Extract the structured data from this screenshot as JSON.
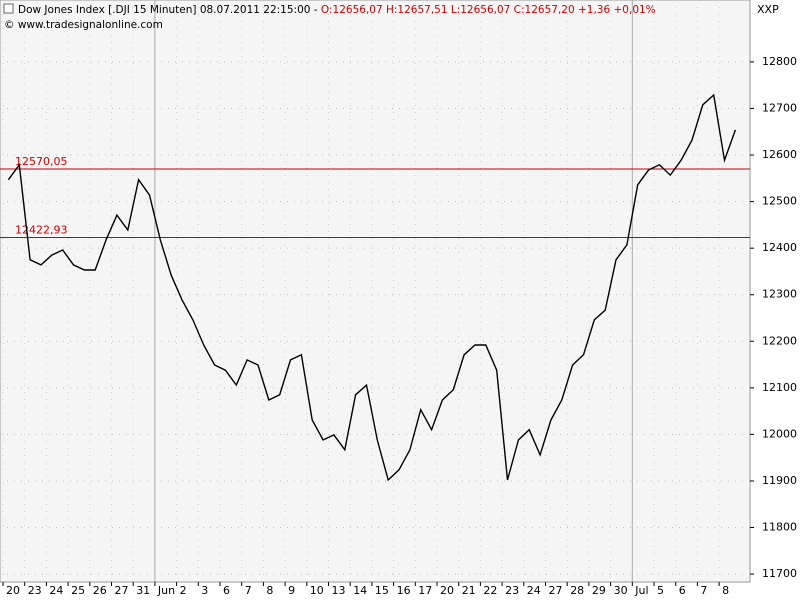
{
  "chart_data": {
    "type": "line",
    "title": "Dow Jones Index [.DJI  15 Minuten] 08.07.2011 22:15:00 -",
    "subtitle": "O:12656,07 H:12657,51 L:12656,07 C:12657,20 +1,36 +0,01%",
    "source": "© www.tradesignalonline.com",
    "axis_name": "XXP",
    "categories": [
      "20",
      null,
      "23",
      null,
      "24",
      null,
      "25",
      null,
      "26",
      null,
      "27",
      null,
      "31",
      null,
      "Jun",
      null,
      "2",
      null,
      "3",
      null,
      "6",
      null,
      "7",
      null,
      "8",
      null,
      "9",
      null,
      "10",
      null,
      "13",
      null,
      "14",
      null,
      "15",
      null,
      "16",
      null,
      "17",
      null,
      "20",
      null,
      "21",
      null,
      "22",
      null,
      "23",
      null,
      "24",
      null,
      "27",
      null,
      "28",
      null,
      "29",
      null,
      "30",
      null,
      "Jul",
      null,
      "5",
      null,
      "6",
      null,
      "7",
      null,
      "8",
      null
    ],
    "series": [
      {
        "color": "#000000",
        "values": [
          12547,
          12579,
          12375,
          12364,
          12385,
          12396,
          12364,
          12353,
          12353,
          12418,
          12471,
          12439,
          12547,
          12514,
          12418,
          12342,
          12289,
          12246,
          12192,
          12149,
          12138,
          12106,
          12160,
          12149,
          12074,
          12085,
          12160,
          12171,
          12031,
          11988,
          11999,
          11967,
          12085,
          12106,
          11988,
          11902,
          11924,
          11967,
          12053,
          12010,
          12074,
          12096,
          12171,
          12192,
          12192,
          12138,
          11902,
          11988,
          12010,
          11956,
          12031,
          12074,
          12149,
          12171,
          12246,
          12267,
          12375,
          12407,
          12536,
          12568,
          12579,
          12557,
          12589,
          12632,
          12708,
          12729,
          12589,
          12654
        ]
      }
    ],
    "levels": [
      {
        "value": 12570.05,
        "label": "12570,05",
        "color": "#cc0000"
      },
      {
        "value": 12422.93,
        "label": "12422,93",
        "color": "#cc0000"
      }
    ],
    "ylim": [
      11683,
      12933
    ],
    "yticks": [
      11700,
      11800,
      11900,
      12000,
      12100,
      12200,
      12300,
      12400,
      12500,
      12600,
      12700,
      12800
    ],
    "grid": true
  }
}
